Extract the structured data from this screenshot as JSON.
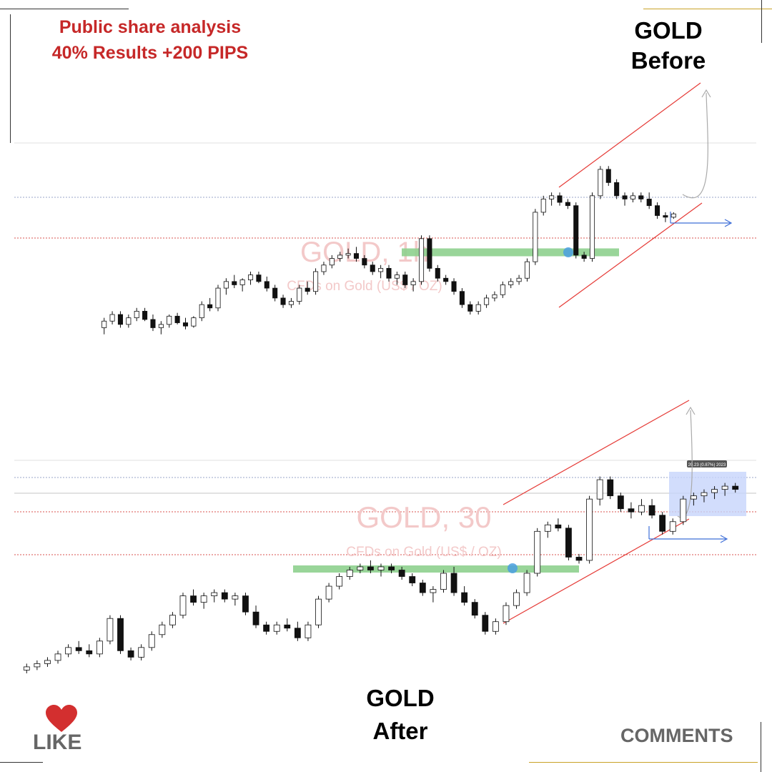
{
  "header": {
    "line1": "Public share analysis",
    "line2": "40% Results +200 PIPS"
  },
  "titles": {
    "before_1": "GOLD",
    "before_2": "Before",
    "after_1": "GOLD",
    "after_2": "After"
  },
  "footer": {
    "like_label": "LIKE",
    "comments_label": "COMMENTS",
    "like_icon": "heart-icon",
    "like_color": "#d32f2f"
  },
  "colors": {
    "channel": "#e53935",
    "zone": "#8fd18f",
    "target_arrow": "#3f6fd8",
    "projection": "#aaaaaa",
    "dotted": "#d9534f",
    "result_box": "#c7d4fb",
    "marker": "#4a9fe0"
  },
  "chart_data": [
    {
      "type": "candlestick",
      "symbol": "GOLD",
      "watermark_title": "GOLD, 1h",
      "watermark_subtitle": "CFDs on Gold (US$ / OZ)",
      "annotations": [
        "ascending channel",
        "support zone",
        "projected move up",
        "target arrow"
      ],
      "series": [
        {
          "name": "GOLD",
          "values": [
            [
              18,
              24,
              14,
              22
            ],
            [
              22,
              28,
              20,
              26
            ],
            [
              26,
              28,
              18,
              20
            ],
            [
              20,
              26,
              18,
              24
            ],
            [
              24,
              30,
              22,
              28
            ],
            [
              28,
              30,
              22,
              23
            ],
            [
              23,
              26,
              16,
              18
            ],
            [
              18,
              22,
              14,
              20
            ],
            [
              20,
              26,
              18,
              25
            ],
            [
              25,
              27,
              20,
              21
            ],
            [
              21,
              24,
              17,
              19
            ],
            [
              19,
              25,
              18,
              24
            ],
            [
              24,
              34,
              22,
              32
            ],
            [
              32,
              36,
              28,
              30
            ],
            [
              30,
              44,
              28,
              42
            ],
            [
              42,
              48,
              38,
              46
            ],
            [
              46,
              50,
              42,
              44
            ],
            [
              44,
              48,
              40,
              47
            ],
            [
              47,
              52,
              44,
              50
            ],
            [
              50,
              52,
              45,
              46
            ],
            [
              46,
              49,
              40,
              42
            ],
            [
              42,
              44,
              34,
              36
            ],
            [
              36,
              38,
              30,
              32
            ],
            [
              32,
              36,
              30,
              34
            ],
            [
              34,
              44,
              32,
              42
            ],
            [
              42,
              46,
              38,
              40
            ],
            [
              40,
              54,
              38,
              52
            ],
            [
              52,
              58,
              50,
              56
            ],
            [
              56,
              62,
              54,
              60
            ],
            [
              60,
              64,
              58,
              62
            ],
            [
              62,
              66,
              60,
              63
            ],
            [
              63,
              67,
              58,
              60
            ],
            [
              60,
              62,
              54,
              56
            ],
            [
              56,
              58,
              50,
              52
            ],
            [
              52,
              56,
              48,
              54
            ],
            [
              54,
              56,
              46,
              48
            ],
            [
              48,
              52,
              44,
              50
            ],
            [
              50,
              52,
              42,
              44
            ],
            [
              44,
              48,
              40,
              46
            ],
            [
              46,
              74,
              44,
              72
            ],
            [
              72,
              74,
              52,
              54
            ],
            [
              54,
              56,
              46,
              48
            ],
            [
              48,
              50,
              44,
              46
            ],
            [
              46,
              48,
              38,
              40
            ],
            [
              40,
              42,
              30,
              32
            ],
            [
              32,
              34,
              26,
              28
            ],
            [
              28,
              34,
              26,
              32
            ],
            [
              32,
              38,
              30,
              36
            ],
            [
              36,
              40,
              34,
              38
            ],
            [
              38,
              46,
              36,
              44
            ],
            [
              44,
              48,
              42,
              46
            ],
            [
              46,
              50,
              44,
              48
            ],
            [
              48,
              60,
              46,
              58
            ],
            [
              58,
              90,
              56,
              88
            ],
            [
              88,
              98,
              86,
              96
            ],
            [
              96,
              100,
              92,
              98
            ],
            [
              98,
              100,
              92,
              94
            ],
            [
              94,
              96,
              90,
              92
            ],
            [
              92,
              94,
              60,
              62
            ],
            [
              62,
              64,
              58,
              60
            ],
            [
              60,
              100,
              58,
              98
            ],
            [
              98,
              116,
              96,
              114
            ],
            [
              114,
              116,
              104,
              106
            ],
            [
              106,
              108,
              96,
              98
            ],
            [
              98,
              100,
              92,
              96
            ],
            [
              96,
              100,
              94,
              98
            ],
            [
              98,
              100,
              94,
              96
            ],
            [
              96,
              100,
              90,
              92
            ],
            [
              92,
              94,
              84,
              86
            ],
            [
              86,
              88,
              82,
              85
            ],
            [
              85,
              88,
              84,
              87
            ]
          ]
        }
      ],
      "ylim": [
        0,
        130
      ],
      "grid": false
    },
    {
      "type": "candlestick",
      "symbol": "GOLD",
      "watermark_title": "GOLD, 30",
      "watermark_subtitle": "CFDs on Gold (US$ / OZ)",
      "result_label": "20.23 (0.87%) 2023",
      "annotations": [
        "ascending channel",
        "support zone",
        "projected move up",
        "target arrow",
        "result box"
      ],
      "series": [
        {
          "name": "GOLD",
          "values": [
            [
              10,
              14,
              8,
              12
            ],
            [
              12,
              16,
              10,
              14
            ],
            [
              14,
              18,
              12,
              16
            ],
            [
              16,
              22,
              14,
              20
            ],
            [
              20,
              26,
              18,
              24
            ],
            [
              24,
              28,
              20,
              22
            ],
            [
              22,
              26,
              18,
              20
            ],
            [
              20,
              30,
              18,
              28
            ],
            [
              28,
              44,
              26,
              42
            ],
            [
              42,
              44,
              20,
              22
            ],
            [
              22,
              24,
              16,
              18
            ],
            [
              18,
              26,
              16,
              24
            ],
            [
              24,
              34,
              22,
              32
            ],
            [
              32,
              40,
              30,
              38
            ],
            [
              38,
              46,
              36,
              44
            ],
            [
              44,
              58,
              42,
              56
            ],
            [
              56,
              60,
              50,
              52
            ],
            [
              52,
              58,
              48,
              56
            ],
            [
              56,
              60,
              52,
              58
            ],
            [
              58,
              60,
              52,
              54
            ],
            [
              54,
              58,
              50,
              56
            ],
            [
              56,
              58,
              44,
              46
            ],
            [
              46,
              50,
              36,
              38
            ],
            [
              38,
              40,
              32,
              34
            ],
            [
              34,
              40,
              32,
              38
            ],
            [
              38,
              42,
              34,
              36
            ],
            [
              36,
              40,
              28,
              30
            ],
            [
              30,
              40,
              28,
              38
            ],
            [
              38,
              56,
              36,
              54
            ],
            [
              54,
              64,
              52,
              62
            ],
            [
              62,
              70,
              60,
              68
            ],
            [
              68,
              74,
              66,
              72
            ],
            [
              72,
              76,
              70,
              74
            ],
            [
              74,
              78,
              70,
              72
            ],
            [
              72,
              76,
              68,
              74
            ],
            [
              74,
              76,
              70,
              72
            ],
            [
              72,
              74,
              66,
              68
            ],
            [
              68,
              70,
              62,
              64
            ],
            [
              64,
              66,
              56,
              58
            ],
            [
              58,
              62,
              52,
              60
            ],
            [
              60,
              72,
              58,
              70
            ],
            [
              70,
              74,
              56,
              58
            ],
            [
              58,
              62,
              50,
              52
            ],
            [
              52,
              54,
              42,
              44
            ],
            [
              44,
              46,
              32,
              34
            ],
            [
              34,
              42,
              32,
              40
            ],
            [
              40,
              52,
              38,
              50
            ],
            [
              50,
              60,
              48,
              58
            ],
            [
              58,
              72,
              56,
              70
            ],
            [
              70,
              98,
              68,
              96
            ],
            [
              96,
              102,
              92,
              100
            ],
            [
              100,
              104,
              96,
              98
            ],
            [
              98,
              100,
              78,
              80
            ],
            [
              80,
              82,
              76,
              78
            ],
            [
              78,
              118,
              76,
              116
            ],
            [
              116,
              130,
              112,
              128
            ],
            [
              128,
              130,
              116,
              118
            ],
            [
              118,
              120,
              108,
              110
            ],
            [
              110,
              114,
              104,
              108
            ],
            [
              108,
              116,
              106,
              112
            ],
            [
              112,
              116,
              104,
              106
            ],
            [
              106,
              108,
              94,
              96
            ],
            [
              96,
              104,
              94,
              102
            ],
            [
              102,
              118,
              100,
              116
            ],
            [
              116,
              120,
              112,
              118
            ],
            [
              118,
              122,
              114,
              120
            ],
            [
              120,
              124,
              116,
              122
            ],
            [
              122,
              126,
              118,
              124
            ],
            [
              124,
              126,
              120,
              122
            ]
          ]
        }
      ],
      "ylim": [
        0,
        140
      ],
      "grid": false
    }
  ]
}
